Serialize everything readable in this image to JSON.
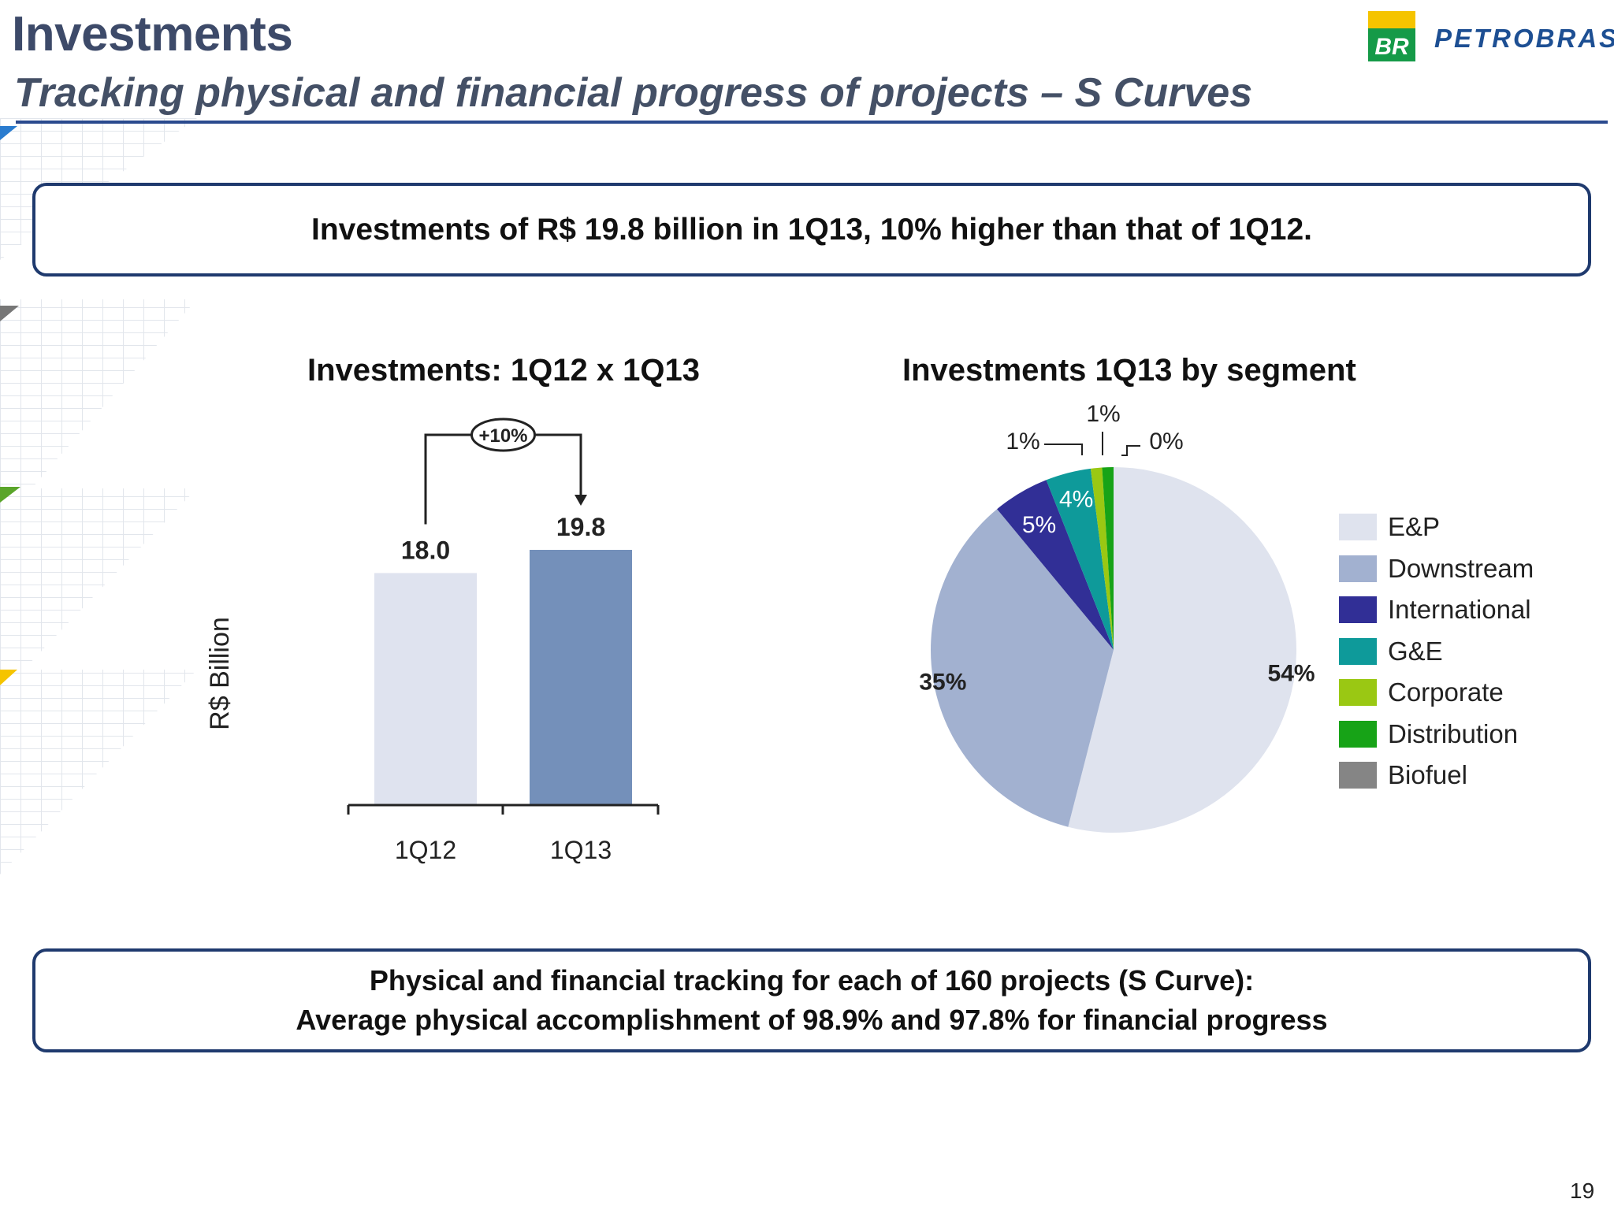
{
  "header": {
    "title": "Investments",
    "subtitle": "Tracking physical and financial progress of projects – S Curves",
    "logo_badge": "BR",
    "logo_text": "PETROBRAS"
  },
  "highlight_top": "Investments of R$ 19.8 billion in 1Q13, 10% higher than that of 1Q12.",
  "highlight_bottom": {
    "line1": "Physical and financial tracking for each of 160 projects (S Curve):",
    "line2": "Average physical accomplishment of 98.9% and 97.8% for financial progress"
  },
  "page_number": "19",
  "colors": {
    "title": "#3d4a69",
    "accent": "#1f3a6e",
    "logo_yellow": "#f5c400",
    "logo_green": "#159a48"
  },
  "chart_data": [
    {
      "type": "bar",
      "title": "Investments: 1Q12 x 1Q13",
      "ylabel": "R$ Billion",
      "categories": [
        "1Q12",
        "1Q13"
      ],
      "values": [
        18.0,
        19.8
      ],
      "value_labels": [
        "18.0",
        "19.8"
      ],
      "colors": [
        "#dfe3ef",
        "#7490ba"
      ],
      "annotation": "+10%",
      "ylim": [
        0,
        22
      ]
    },
    {
      "type": "pie",
      "title": "Investments 1Q13 by segment",
      "legend_position": "right",
      "slices": [
        {
          "label": "E&P",
          "value": 54,
          "value_label": "54%",
          "color": "#dfe3ee"
        },
        {
          "label": "Downstream",
          "value": 35,
          "value_label": "35%",
          "color": "#a2b1d0"
        },
        {
          "label": "International",
          "value": 5,
          "value_label": "5%",
          "color": "#312f96"
        },
        {
          "label": "G&E",
          "value": 4,
          "value_label": "4%",
          "color": "#0e9a9a"
        },
        {
          "label": "Corporate",
          "value": 1,
          "value_label": "1%",
          "color": "#9ac813"
        },
        {
          "label": "Distribution",
          "value": 1,
          "value_label": "1%",
          "color": "#17a317"
        },
        {
          "label": "Biofuel",
          "value": 0,
          "value_label": "0%",
          "color": "#858585"
        }
      ]
    }
  ]
}
